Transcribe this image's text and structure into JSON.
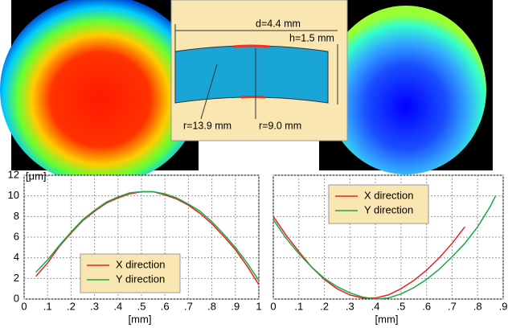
{
  "diagram": {
    "labels": [
      "d=4.4 mm",
      "h=1.5 mm",
      "r=13.9 mm",
      "r=9.0 mm"
    ]
  },
  "chart_data": [
    {
      "type": "line",
      "xlabel": "[mm]",
      "ylabel": "[μm]",
      "xlim": [
        0,
        1
      ],
      "ylim": [
        0,
        12
      ],
      "xticks": [
        0,
        {
          "value": 0.1,
          "label": ".1"
        },
        {
          "value": 0.2,
          "label": ".2"
        },
        {
          "value": 0.3,
          "label": ".3"
        },
        {
          "value": 0.4,
          "label": ".4"
        },
        {
          "value": 0.5,
          "label": ".5"
        },
        {
          "value": 0.6,
          "label": ".6"
        },
        {
          "value": 0.7,
          "label": ".7"
        },
        {
          "value": 0.8,
          "label": ".8"
        },
        {
          "value": 0.9,
          "label": ".9"
        },
        1
      ],
      "yticks": [
        0,
        2,
        4,
        6,
        8,
        10,
        12
      ],
      "grid": true,
      "legend": "lower center",
      "series": [
        {
          "name": "X direction",
          "color": "#e8221c",
          "x": [
            0.05,
            0.1,
            0.15,
            0.2,
            0.25,
            0.3,
            0.35,
            0.4,
            0.45,
            0.5,
            0.55,
            0.6,
            0.65,
            0.7,
            0.75,
            0.8,
            0.85,
            0.9,
            0.95,
            1.0
          ],
          "values": [
            2.2,
            3.5,
            5.1,
            6.4,
            7.6,
            8.5,
            9.3,
            9.8,
            10.2,
            10.4,
            10.4,
            10.1,
            9.7,
            9.1,
            8.3,
            7.3,
            6.1,
            4.8,
            3.2,
            1.4
          ]
        },
        {
          "name": "Y direction",
          "color": "#1aa84a",
          "x": [
            0.05,
            0.1,
            0.15,
            0.2,
            0.25,
            0.3,
            0.35,
            0.4,
            0.45,
            0.5,
            0.55,
            0.6,
            0.65,
            0.7,
            0.75,
            0.8,
            0.85,
            0.9,
            0.95,
            1.0
          ],
          "values": [
            2.6,
            3.8,
            5.2,
            6.5,
            7.7,
            8.6,
            9.4,
            9.9,
            10.3,
            10.4,
            10.4,
            10.2,
            9.8,
            9.2,
            8.5,
            7.5,
            6.3,
            5.0,
            3.5,
            1.8
          ]
        }
      ]
    },
    {
      "type": "line",
      "xlabel": "[mm]",
      "xlim": [
        0,
        0.9
      ],
      "ylim": [
        0,
        12
      ],
      "xticks": [
        0,
        {
          "value": 0.1,
          "label": ".1"
        },
        {
          "value": 0.2,
          "label": ".2"
        },
        {
          "value": 0.3,
          "label": ".3"
        },
        {
          "value": 0.4,
          "label": ".4"
        },
        {
          "value": 0.5,
          "label": ".5"
        },
        {
          "value": 0.6,
          "label": ".6"
        },
        {
          "value": 0.7,
          "label": ".7"
        },
        {
          "value": 0.8,
          "label": ".8"
        },
        {
          "value": 0.9,
          "label": ".9"
        }
      ],
      "yticks": [
        0,
        2,
        4,
        6,
        8,
        10,
        12
      ],
      "grid": true,
      "legend": "upper center",
      "series": [
        {
          "name": "X direction",
          "color": "#e8221c",
          "x": [
            0,
            0.05,
            0.1,
            0.15,
            0.2,
            0.25,
            0.3,
            0.35,
            0.4,
            0.45,
            0.5,
            0.55,
            0.6,
            0.65,
            0.7,
            0.75
          ],
          "values": [
            8.0,
            6.2,
            4.6,
            3.1,
            1.9,
            1.0,
            0.4,
            0.1,
            0.1,
            0.4,
            1.0,
            1.8,
            2.8,
            4.0,
            5.4,
            7.0
          ]
        },
        {
          "name": "Y direction",
          "color": "#1aa84a",
          "x": [
            0,
            0.05,
            0.1,
            0.15,
            0.2,
            0.25,
            0.3,
            0.35,
            0.4,
            0.45,
            0.5,
            0.55,
            0.6,
            0.65,
            0.7,
            0.75,
            0.8,
            0.85,
            0.87
          ],
          "values": [
            7.7,
            5.9,
            4.4,
            3.1,
            2.0,
            1.2,
            0.6,
            0.2,
            0.0,
            0.1,
            0.5,
            1.1,
            1.9,
            2.9,
            4.1,
            5.4,
            7.0,
            9.0,
            10.0
          ]
        }
      ]
    }
  ]
}
